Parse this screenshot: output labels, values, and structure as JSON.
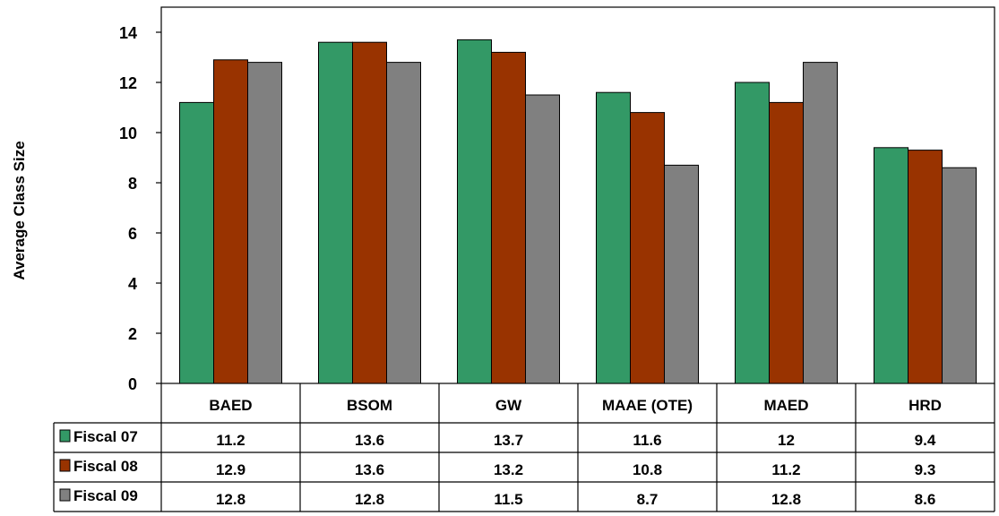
{
  "chart_data": {
    "type": "bar",
    "title": "",
    "xlabel": "",
    "ylabel": "Average Class Size",
    "ylim": [
      0,
      15
    ],
    "yticks": [
      0,
      2,
      4,
      6,
      8,
      10,
      12,
      14
    ],
    "grid": false,
    "legend": "data-table-left",
    "categories": [
      "BAED",
      "BSOM",
      "GW",
      "MAAE (OTE)",
      "MAED",
      "HRD"
    ],
    "series": [
      {
        "name": "Fiscal 07",
        "color": "#339966",
        "values": [
          11.2,
          13.6,
          13.7,
          11.6,
          12,
          9.4
        ]
      },
      {
        "name": "Fiscal 08",
        "color": "#993300",
        "values": [
          12.9,
          13.6,
          13.2,
          10.8,
          11.2,
          9.3
        ]
      },
      {
        "name": "Fiscal 09",
        "color": "#808080",
        "values": [
          12.8,
          12.8,
          11.5,
          8.7,
          12.8,
          8.6
        ]
      }
    ]
  }
}
